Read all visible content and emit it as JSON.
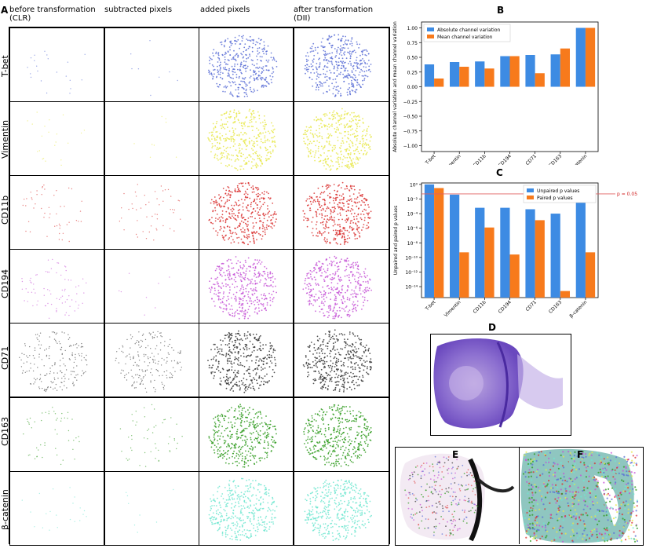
{
  "panel_a": {
    "letter": "A",
    "columns": [
      "before transformation\n(CLR)",
      "subtracted pixels",
      "added pixels",
      "after transformation\n(DII)"
    ],
    "markers": [
      "T-bet",
      "Vimentin",
      "CD11b",
      "CD194",
      "CD71",
      "CD163",
      "β-catenin"
    ],
    "colors": [
      "#5a6fd6",
      "#e8e84a",
      "#d9302f",
      "#c653d6",
      "#333333",
      "#2e9a1c",
      "#6fe6d0"
    ]
  },
  "panel_b": {
    "letter": "B"
  },
  "panel_c": {
    "letter": "C"
  },
  "panel_d": {
    "letter": "D"
  },
  "panel_e": {
    "letter": "E"
  },
  "panel_f": {
    "letter": "F"
  },
  "chart_data": [
    {
      "type": "bar",
      "title": "B",
      "categories": [
        "T-bet",
        "Vimentin",
        "CD11b",
        "CD194",
        "CD71",
        "CD163",
        "β-catenin"
      ],
      "series": [
        {
          "name": "Absolute channel variation",
          "color": "#3d8be3",
          "values": [
            0.38,
            0.42,
            0.43,
            0.52,
            0.54,
            0.55,
            1.0
          ]
        },
        {
          "name": "Mean channel variation",
          "color": "#f77a1c",
          "values": [
            0.14,
            0.34,
            0.31,
            0.52,
            0.23,
            0.65,
            1.0
          ]
        }
      ],
      "ylabel": "Absolute channel variation and mean channel variation",
      "ylim": [
        -1.1,
        1.1
      ],
      "yticks": [
        1.0,
        0.75,
        0.5,
        0.25,
        0.0,
        -0.25,
        -0.5,
        -0.75,
        -1.0
      ],
      "ytick_labels": [
        "1.00",
        "0.75",
        "0.50",
        "0.25",
        "0.00",
        "−0.25",
        "−0.50",
        "−0.75",
        "−1.00"
      ],
      "legend": "top-left"
    },
    {
      "type": "bar",
      "title": "C",
      "categories": [
        "T-bet",
        "Vimentin",
        "CD11b",
        "CD194",
        "CD71",
        "CD163",
        "β-catenin"
      ],
      "series": [
        {
          "name": "Unpaired p values",
          "color": "#3d8be3",
          "log10_values": [
            0,
            -1.4,
            -3.2,
            -3.2,
            -3.4,
            -4.0,
            -1.6
          ]
        },
        {
          "name": "Paired p values",
          "color": "#f77a1c",
          "log10_values": [
            -0.5,
            -9.3,
            -5.9,
            -9.6,
            -4.9,
            -14.6,
            -9.3
          ]
        }
      ],
      "ylabel": "Unpaired and paired p values",
      "yscale": "log",
      "ylim_log10": [
        -15.5,
        0.2
      ],
      "ytick_exponents": [
        0,
        -2,
        -4,
        -6,
        -8,
        -10,
        -12,
        -14
      ],
      "ytick_labels": [
        "10⁰",
        "10⁻²",
        "10⁻⁴",
        "10⁻⁶",
        "10⁻⁸",
        "10⁻¹⁰",
        "10⁻¹²",
        "10⁻¹⁴"
      ],
      "threshold": {
        "log10_value": -1.301,
        "label": "p = 0.05",
        "color": "#e06060"
      },
      "legend": "top-right"
    }
  ]
}
